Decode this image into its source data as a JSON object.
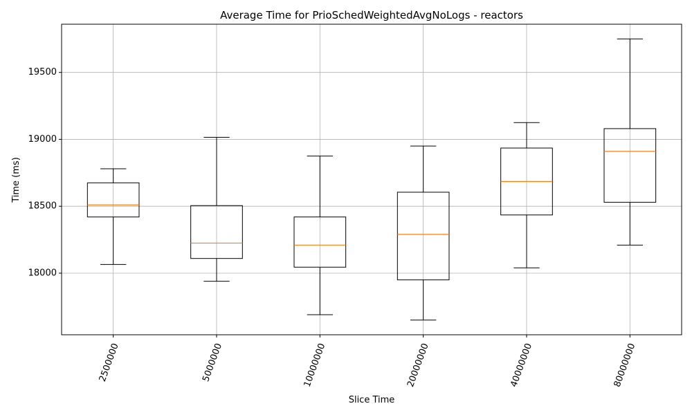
{
  "chart_data": {
    "type": "box",
    "title": "Average Time for PrioSchedWeightedAvgNoLogs - reactors",
    "xlabel": "Slice Time",
    "ylabel": "Time (ms)",
    "categories": [
      "2500000",
      "5000000",
      "10000000",
      "20000000",
      "40000000",
      "80000000"
    ],
    "y_ticks": [
      18000,
      18500,
      19000,
      19500
    ],
    "ylim": [
      17540,
      19860
    ],
    "grid": true,
    "colors": {
      "box": "#000000",
      "median": "#ff7f0e",
      "grid": "#b0b0b0"
    },
    "boxes": [
      {
        "category": "2500000",
        "whisker_low": 18065,
        "q1": 18420,
        "median": 18510,
        "q3": 18675,
        "whisker_high": 18780
      },
      {
        "category": "5000000",
        "whisker_low": 17940,
        "q1": 18110,
        "median": 18225,
        "q3": 18505,
        "whisker_high": 19015
      },
      {
        "category": "10000000",
        "whisker_low": 17690,
        "q1": 18045,
        "median": 18210,
        "q3": 18420,
        "whisker_high": 18875
      },
      {
        "category": "20000000",
        "whisker_low": 17650,
        "q1": 17950,
        "median": 18290,
        "q3": 18605,
        "whisker_high": 18950
      },
      {
        "category": "40000000",
        "whisker_low": 18040,
        "q1": 18435,
        "median": 18685,
        "q3": 18935,
        "whisker_high": 19125
      },
      {
        "category": "80000000",
        "whisker_low": 18210,
        "q1": 18530,
        "median": 18910,
        "q3": 19080,
        "whisker_high": 19750
      }
    ]
  }
}
